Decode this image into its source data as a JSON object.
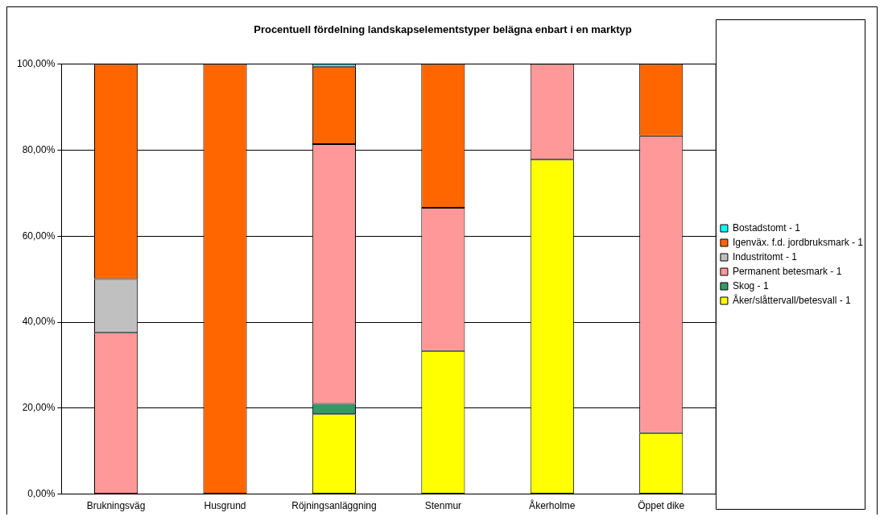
{
  "chart_data": {
    "type": "bar",
    "title": "Procentuell fördelning landskapselementstyper belägna enbart i en marktyp",
    "categories": [
      "Brukningsväg",
      "Husgrund",
      "Röjningsanläggning",
      "Stenmur",
      "Åkerholme",
      "Öppet dike"
    ],
    "stacked": true,
    "series": [
      {
        "name": "Åker/slåttervall/betesvall - 1",
        "color": "#ffff00",
        "values": [
          0,
          0,
          18.6,
          33.3,
          77.8,
          14.2
        ]
      },
      {
        "name": "Skog - 1",
        "color": "#339966",
        "values": [
          0,
          0,
          2.4,
          0,
          0,
          0
        ]
      },
      {
        "name": "Permanent betesmark - 1",
        "color": "#ff9999",
        "values": [
          37.5,
          0,
          60.4,
          33.3,
          22.2,
          69.1
        ]
      },
      {
        "name": "Industritomt - 1",
        "color": "#c0c0c0",
        "values": [
          12.5,
          0,
          0,
          0,
          0,
          0
        ]
      },
      {
        "name": "Igenväx. f.d. jordbruksmark - 1",
        "color": "#ff6600",
        "values": [
          50,
          100,
          18,
          33.4,
          0,
          16.7
        ]
      },
      {
        "name": "Bostadstomt - 1",
        "color": "#00ffff",
        "values": [
          0,
          0,
          0.6,
          0,
          0,
          0
        ]
      }
    ],
    "ylim": [
      0,
      100
    ],
    "yticks": [
      {
        "value": 0,
        "label": "0,00%"
      },
      {
        "value": 20,
        "label": "20,00%"
      },
      {
        "value": 40,
        "label": "40,00%"
      },
      {
        "value": 60,
        "label": "60,00%"
      },
      {
        "value": 80,
        "label": "80,00%"
      },
      {
        "value": 100,
        "label": "100,00%"
      }
    ],
    "grid": "y",
    "legend": "right"
  }
}
